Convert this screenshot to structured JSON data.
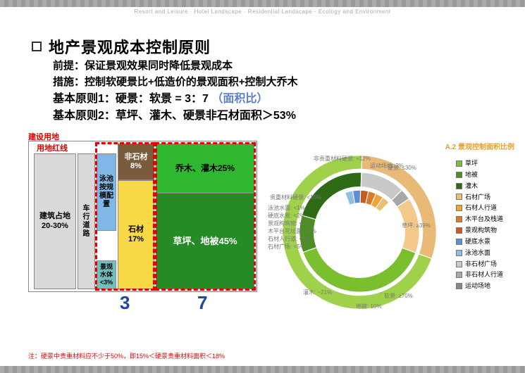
{
  "header_categories": "Resort and Leisure · Hotel Landscape · Residential Landscape · Ecology and Environment",
  "title": "地产景观成本控制原则",
  "premise_label": "前提：",
  "premise_text": "保证景观效果同时降低景观成本",
  "measure_label": "措施：",
  "measure_text": "控制软硬景比+低造价的景观面积+控制大乔木",
  "principle1": "基本原则1：硬景：软景 = 3：7 ",
  "principle1_note": "（面积比）",
  "principle2": "基本原则2：草坪、灌木、硬景非石材面积＞53%",
  "block_diagram": {
    "construction_land": "建设用地",
    "land_redline": "用地红线",
    "building_land": "建筑占地\n20-30%",
    "road": "车行\n道路",
    "pool": "泳池\n按规\n模配\n置",
    "water": "景观\n水体\n<3%",
    "non_stone": "非石材\n8%",
    "stone": "石材\n17%",
    "trees": "乔木、灌木25%",
    "lawn": "草坪、地被45%",
    "ratio_left": "3",
    "ratio_right": "7",
    "colors": {
      "gray": "#d9d9d9",
      "blue": "#7fb8e6",
      "teal": "#6fbfbf",
      "brown": "#7a5c3c",
      "yellow": "#f7d948",
      "green": "#2fb82f",
      "darkgreen": "#268a26"
    }
  },
  "ring": {
    "title": "A.2 景观控制面积比例",
    "outer": {
      "soft": {
        "label": "软景: ≥70%",
        "pct": 70,
        "color": "#9fd14a"
      },
      "hard": {
        "label": "硬景: ≤30%",
        "pct": 30,
        "color": "#e8b977"
      }
    },
    "middle": {
      "lawn": {
        "label": "草坪:  ≥39%",
        "pct": 39,
        "color": "#7abf2e"
      },
      "cover": {
        "label": "地被:  10%",
        "pct": 10,
        "color": "#4a8f1f"
      },
      "shrub": {
        "label": "灌木:  ~21%",
        "pct": 21,
        "color": "#2f6b17"
      },
      "nonload": {
        "label": "非贵重材料硬景: ≈12%",
        "pct": 12,
        "color": "#c9c9c9"
      },
      "load": {
        "label": "贵重材料硬景: <15%",
        "pct": 15,
        "color": "#f2c98a"
      },
      "water": {
        "label": "运动场地: 3%",
        "pct": 3,
        "color": "#a8a8a8"
      }
    },
    "inner_labels": [
      "泳池水面: <1%",
      "硬底水景: <2%",
      "景观构筑物: <2%",
      "木平台花坛面: <2%",
      "石材人行道: <5%",
      "石材广场: <5%"
    ]
  },
  "legend": [
    {
      "label": "草坪",
      "color": "#7abf2e"
    },
    {
      "label": "地被",
      "color": "#4a8f1f"
    },
    {
      "label": "灌木",
      "color": "#2f6b17"
    },
    {
      "label": "石材广场",
      "color": "#e8c070"
    },
    {
      "label": "石材人行道",
      "color": "#f2a23a"
    },
    {
      "label": "木平台及栈道",
      "color": "#d97b2b"
    },
    {
      "label": "景观构筑物",
      "color": "#c75a1f"
    },
    {
      "label": "硬底水景",
      "color": "#5b8fd6"
    },
    {
      "label": "泳池水面",
      "color": "#8fbde8"
    },
    {
      "label": "非石材广场",
      "color": "#c9c9c9"
    },
    {
      "label": "非石材人行道",
      "color": "#a8a8a8"
    },
    {
      "label": "运动场地",
      "color": "#888888"
    }
  ],
  "footnote": "注：硬景中贵重材料应不少于50%，即15%＜硬景贵重材料面积＜18%"
}
